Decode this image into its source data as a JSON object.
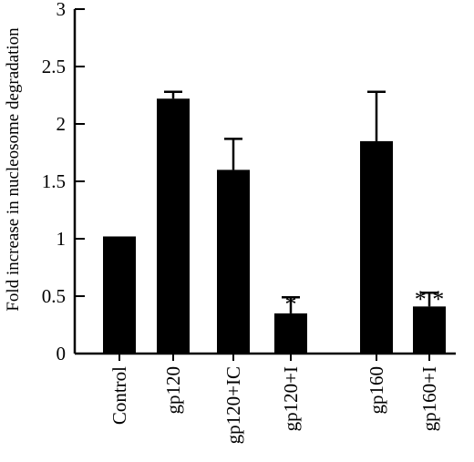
{
  "chart_data": {
    "type": "bar",
    "title": "",
    "xlabel": "",
    "ylabel": "Fold increase in nucleosome degradation",
    "ylim": [
      0,
      3
    ],
    "yticks": [
      "0",
      "0.5",
      "1",
      "1.5",
      "2",
      "2.5",
      "3"
    ],
    "categories": [
      "Control",
      "gp120",
      "gp120+IC",
      "gp120+I",
      "gp160",
      "gp160+I"
    ],
    "values": [
      1.02,
      2.22,
      1.6,
      0.35,
      1.85,
      0.41
    ],
    "error": [
      0,
      0.06,
      0.27,
      0.14,
      0.43,
      0.12
    ],
    "annotations": [
      "",
      "",
      "",
      "*",
      "",
      "**"
    ],
    "bar_color": "#000000",
    "grid": false,
    "legend": "none"
  }
}
